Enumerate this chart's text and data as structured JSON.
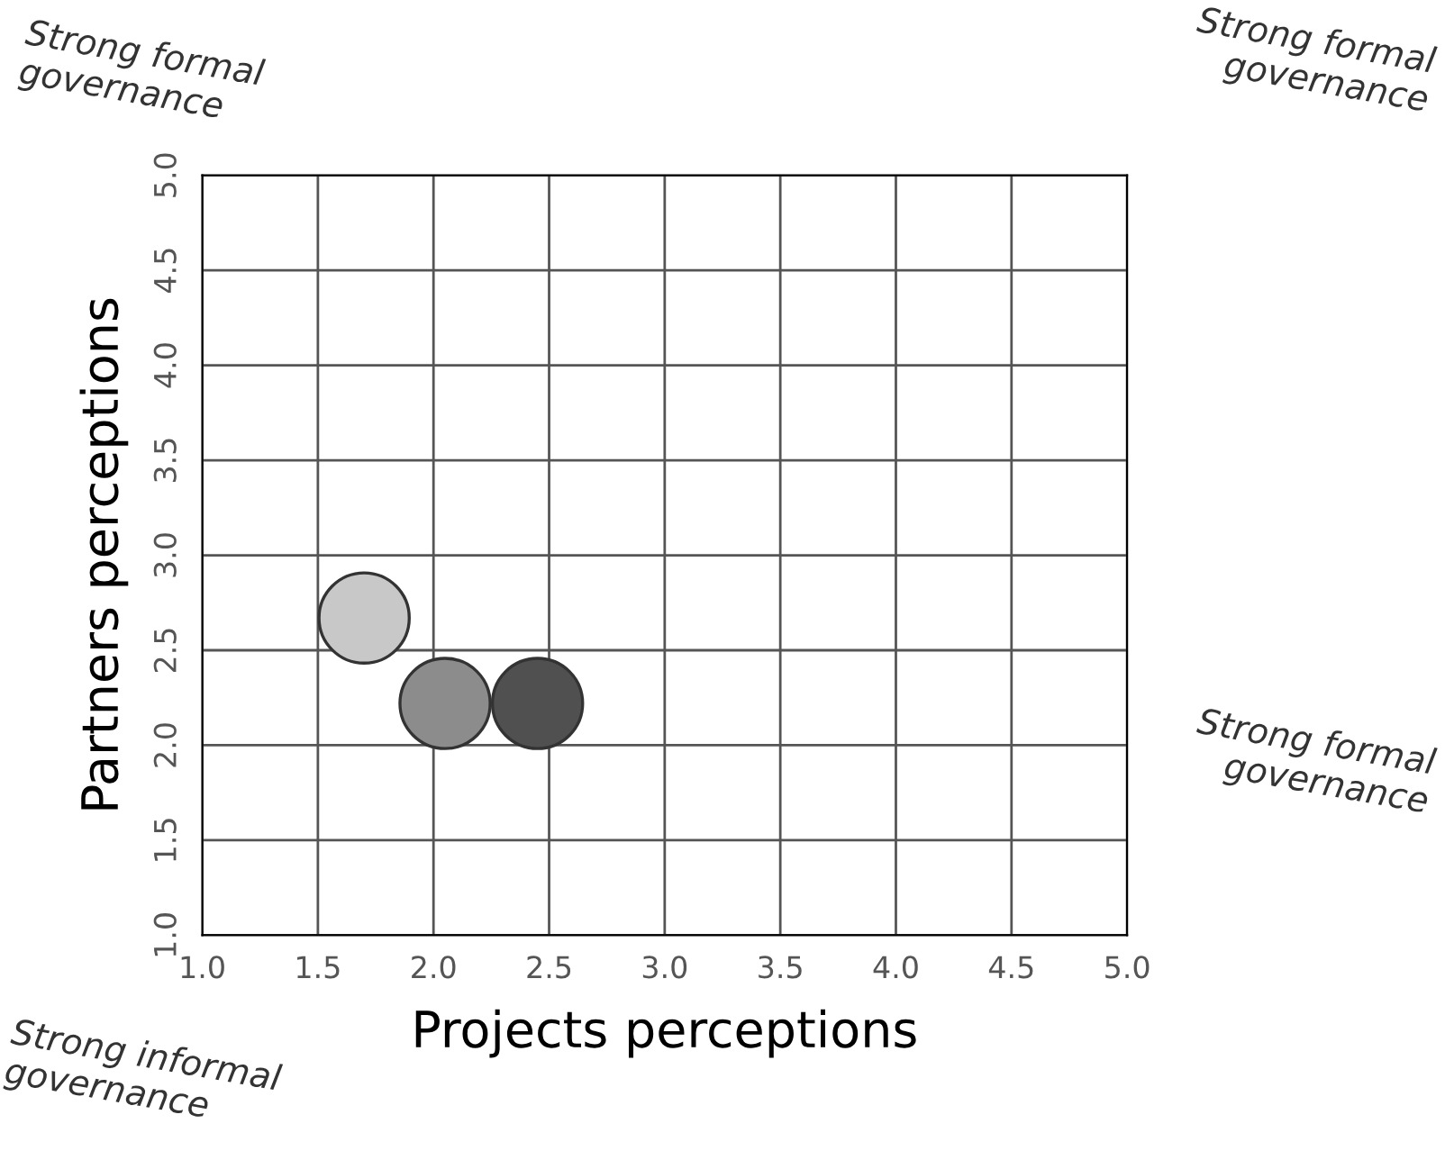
{
  "chart_data": {
    "type": "scatter",
    "xlabel": "Projects perceptions",
    "ylabel": "Partners perceptions",
    "x": [
      1.7,
      2.05,
      2.45
    ],
    "series": [
      {
        "colors": [
          "#c8c8c8",
          "#8c8c8c",
          "#505050"
        ],
        "values": [
          2.67,
          2.22,
          2.22
        ]
      }
    ],
    "xlim": [
      1.0,
      5.0
    ],
    "ylim": [
      1.0,
      5.0
    ],
    "xticks": [
      {
        "value": 1.0,
        "label": "1.0"
      },
      {
        "value": 1.5,
        "label": "1.5"
      },
      {
        "value": 2.0,
        "label": "2.0"
      },
      {
        "value": 2.5,
        "label": "2.5"
      },
      {
        "value": 3.0,
        "label": "3.0"
      },
      {
        "value": 3.5,
        "label": "3.5"
      },
      {
        "value": 4.0,
        "label": "4.0"
      },
      {
        "value": 4.5,
        "label": "4.5"
      },
      {
        "value": 5.0,
        "label": "5.0"
      }
    ],
    "yticks": [
      {
        "value": 1.0,
        "label": "1.0"
      },
      {
        "value": 1.5,
        "label": "1.5"
      },
      {
        "value": 2.0,
        "label": "2.0"
      },
      {
        "value": 2.5,
        "label": "2.5"
      },
      {
        "value": 3.0,
        "label": "3.0"
      },
      {
        "value": 3.5,
        "label": "3.5"
      },
      {
        "value": 4.0,
        "label": "4.0"
      },
      {
        "value": 4.5,
        "label": "4.5"
      },
      {
        "value": 5.0,
        "label": "5.0"
      }
    ],
    "grid": true,
    "marker": "circle",
    "legend": false,
    "annotations": [
      "Strong formal\ngovernance",
      "Strong formal\ngovernance",
      "Strong formal\ngovernance",
      "Strong informal\ngovernance"
    ]
  }
}
